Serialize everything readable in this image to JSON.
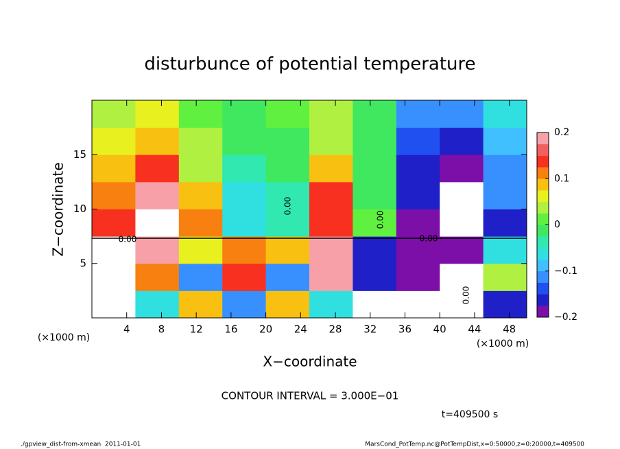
{
  "chart_data": {
    "type": "contour",
    "title": "disturbunce of potential temperature",
    "x_label": "X−coordinate",
    "y_label": "Z−coordinate",
    "x_unit": "(×1000 m)",
    "x": [
      2.5,
      7.5,
      12.5,
      17.5,
      22.5,
      27.5,
      32.5,
      37.5,
      42.5,
      47.5
    ],
    "y": [
      1.25,
      3.75,
      6.25,
      8.75,
      11.25,
      13.75,
      16.25,
      18.75
    ],
    "z": [
      [
        0.25,
        -0.05,
        0.08,
        -0.12,
        0.1,
        -0.06,
        0.22,
        0.25,
        0.25,
        -0.15
      ],
      [
        0.25,
        0.12,
        -0.1,
        0.15,
        -0.12,
        0.18,
        -0.15,
        -0.2,
        0.25,
        0.05
      ],
      [
        0.25,
        0.2,
        0.06,
        0.12,
        0.1,
        0.2,
        -0.15,
        -0.18,
        -0.2,
        -0.05
      ],
      [
        0.15,
        0.25,
        0.12,
        -0.05,
        -0.03,
        0.15,
        0.02,
        -0.2,
        -0.25,
        -0.15
      ],
      [
        0.12,
        0.18,
        0.08,
        -0.05,
        -0.04,
        0.13,
        0.0,
        -0.17,
        -0.25,
        -0.12
      ],
      [
        0.1,
        0.14,
        0.05,
        -0.04,
        -0.02,
        0.08,
        -0.01,
        -0.15,
        -0.2,
        -0.1
      ],
      [
        0.06,
        0.1,
        0.04,
        -0.02,
        0.0,
        0.05,
        -0.02,
        -0.13,
        -0.16,
        -0.08
      ],
      [
        0.03,
        0.07,
        0.02,
        0.0,
        0.01,
        0.03,
        -0.02,
        -0.1,
        -0.12,
        -0.05
      ]
    ],
    "xlim": [
      0,
      50
    ],
    "ylim": [
      0,
      20
    ],
    "xticks": [
      4,
      8,
      12,
      16,
      20,
      24,
      28,
      32,
      36,
      40,
      44,
      48
    ],
    "yticks": [
      5,
      10,
      15
    ],
    "levels": [
      -0.2,
      -0.175,
      -0.15,
      -0.125,
      -0.1,
      -0.075,
      -0.05,
      -0.025,
      0,
      0.025,
      0.05,
      0.075,
      0.1,
      0.125,
      0.15,
      0.175,
      0.2
    ],
    "colors": [
      "#7b0fa8",
      "#2020c8",
      "#2050f0",
      "#3890ff",
      "#40c0ff",
      "#30e0e0",
      "#30e8b0",
      "#40e860",
      "#60f040",
      "#b0f040",
      "#e8f020",
      "#f8c010",
      "#f88010",
      "#f83020",
      "#f06060",
      "#f8a0a8"
    ],
    "over_color": "#ffffff",
    "under_color": "#ffffff",
    "colorbar_ticks": [
      {
        "value": 0.2,
        "label": "0.2"
      },
      {
        "value": 0.1,
        "label": "0.1"
      },
      0,
      {
        "value": -0.1,
        "label": "−0.1"
      },
      {
        "value": -0.2,
        "label": "−0.2"
      }
    ],
    "contour_labels": [
      "0.00",
      "0.00",
      "0.00",
      "0.00",
      "0.00"
    ],
    "contour_interval_text": "CONTOUR INTERVAL = 3.000E−01",
    "time_text": "t=409500 s",
    "footer_left": "./gpview_dist-from-xmean  2011-01-01",
    "footer_right": "MarsCond_PotTemp.nc@PotTempDist,x=0:50000,z=0:20000,t=409500"
  }
}
